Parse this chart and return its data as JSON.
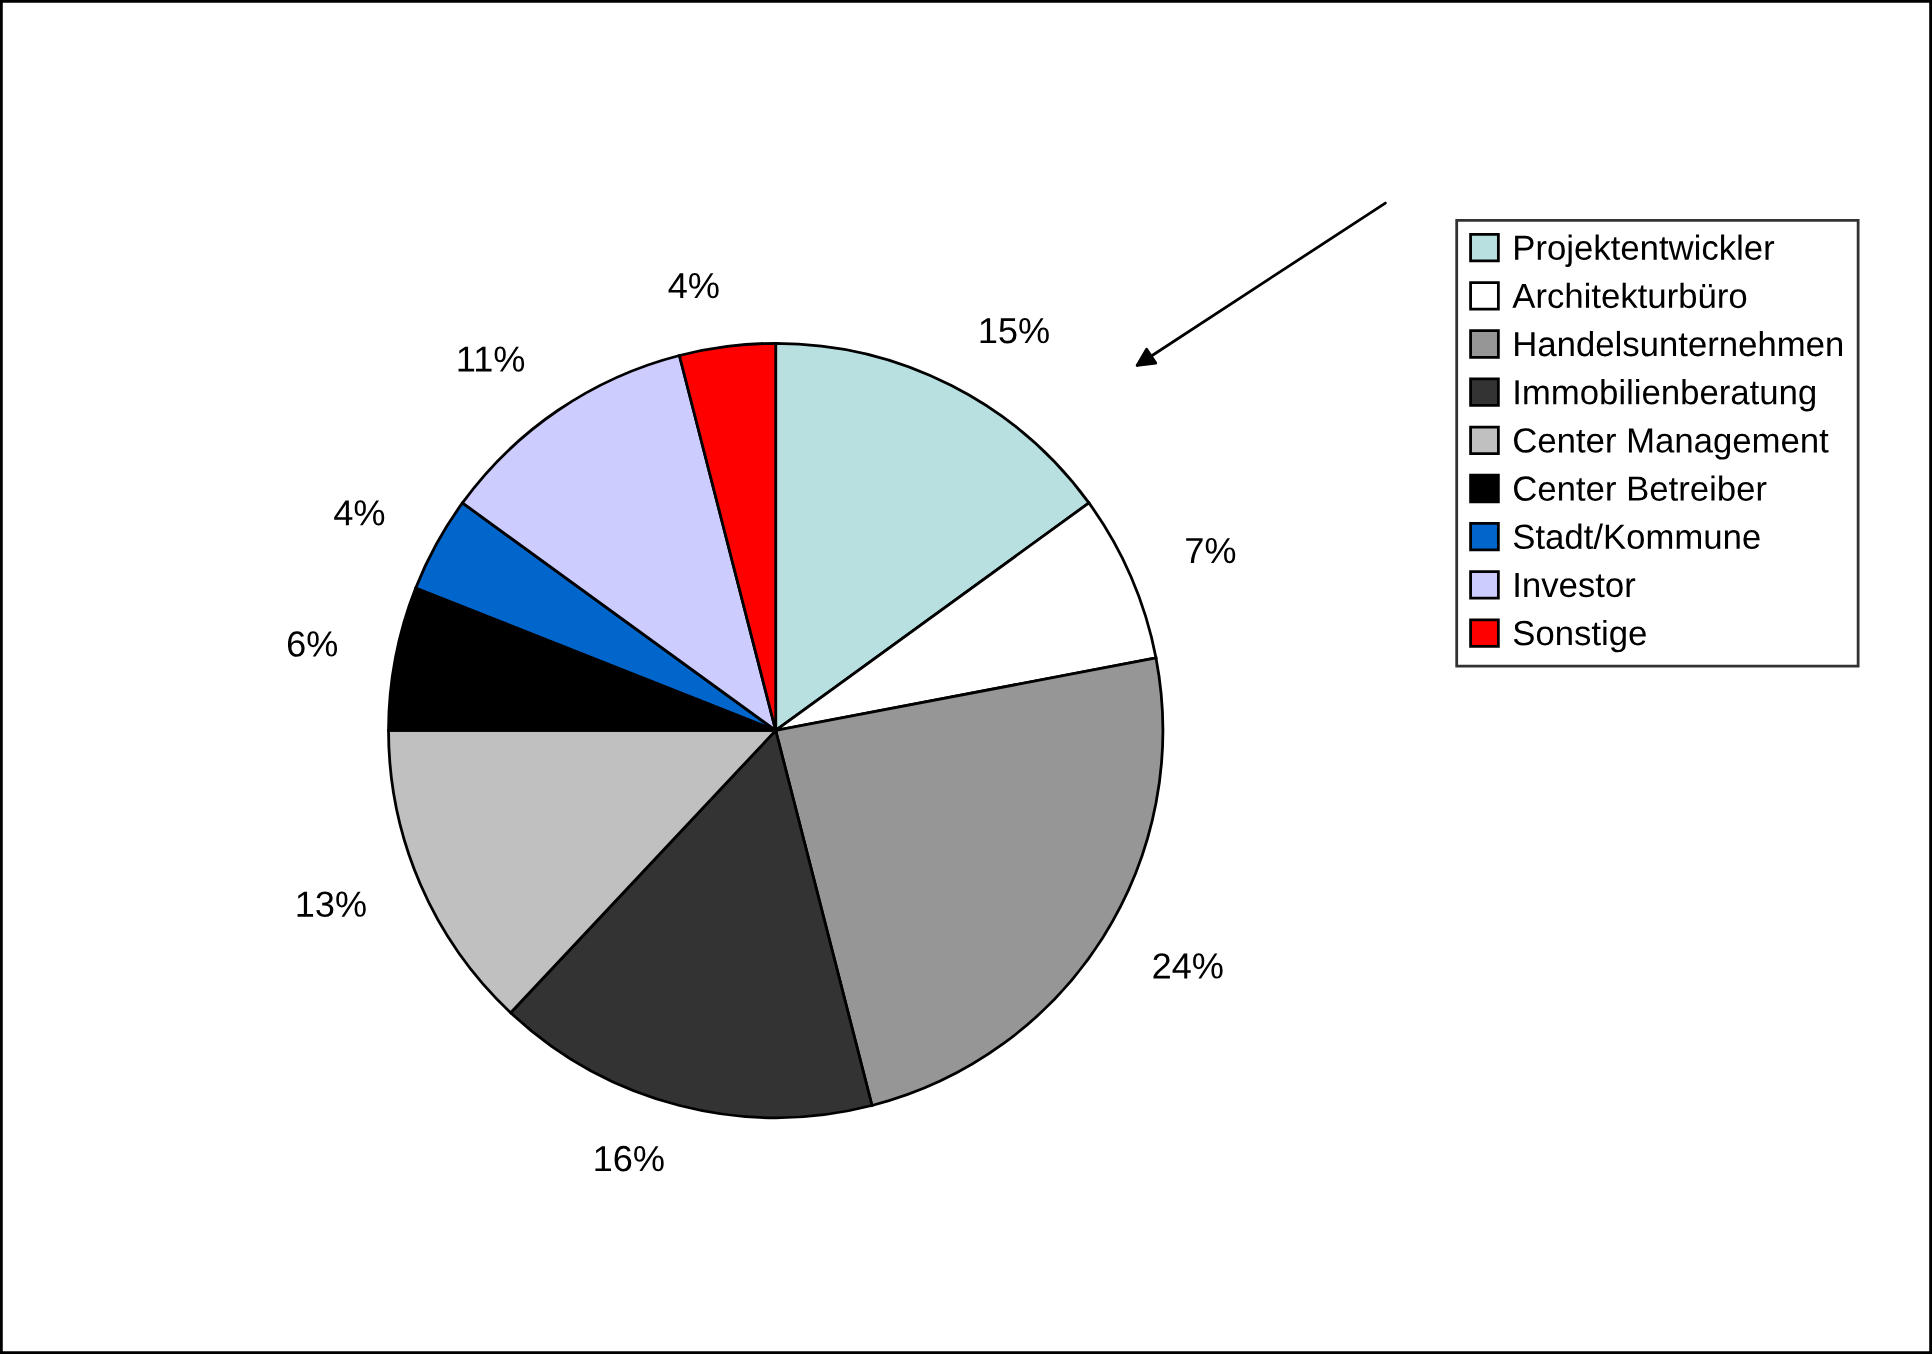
{
  "chart_data": {
    "type": "pie",
    "categories": [
      "Projektentwickler",
      "Architekturbüro",
      "Handelsunternehmen",
      "Immobilienberatung",
      "Center Management",
      "Center Betreiber",
      "Stadt/Kommune",
      "Investor",
      "Sonstige"
    ],
    "values": [
      15,
      7,
      24,
      16,
      13,
      6,
      4,
      11,
      4
    ],
    "colors": [
      "#b8e0e0",
      "#ffffff",
      "#969696",
      "#333333",
      "#c0c0c0",
      "#000000",
      "#0066cc",
      "#ccccff",
      "#ff0000"
    ],
    "value_labels": [
      "15%",
      "7%",
      "24%",
      "16%",
      "13%",
      "6%",
      "4%",
      "11%",
      "4%"
    ],
    "legend": "right"
  }
}
